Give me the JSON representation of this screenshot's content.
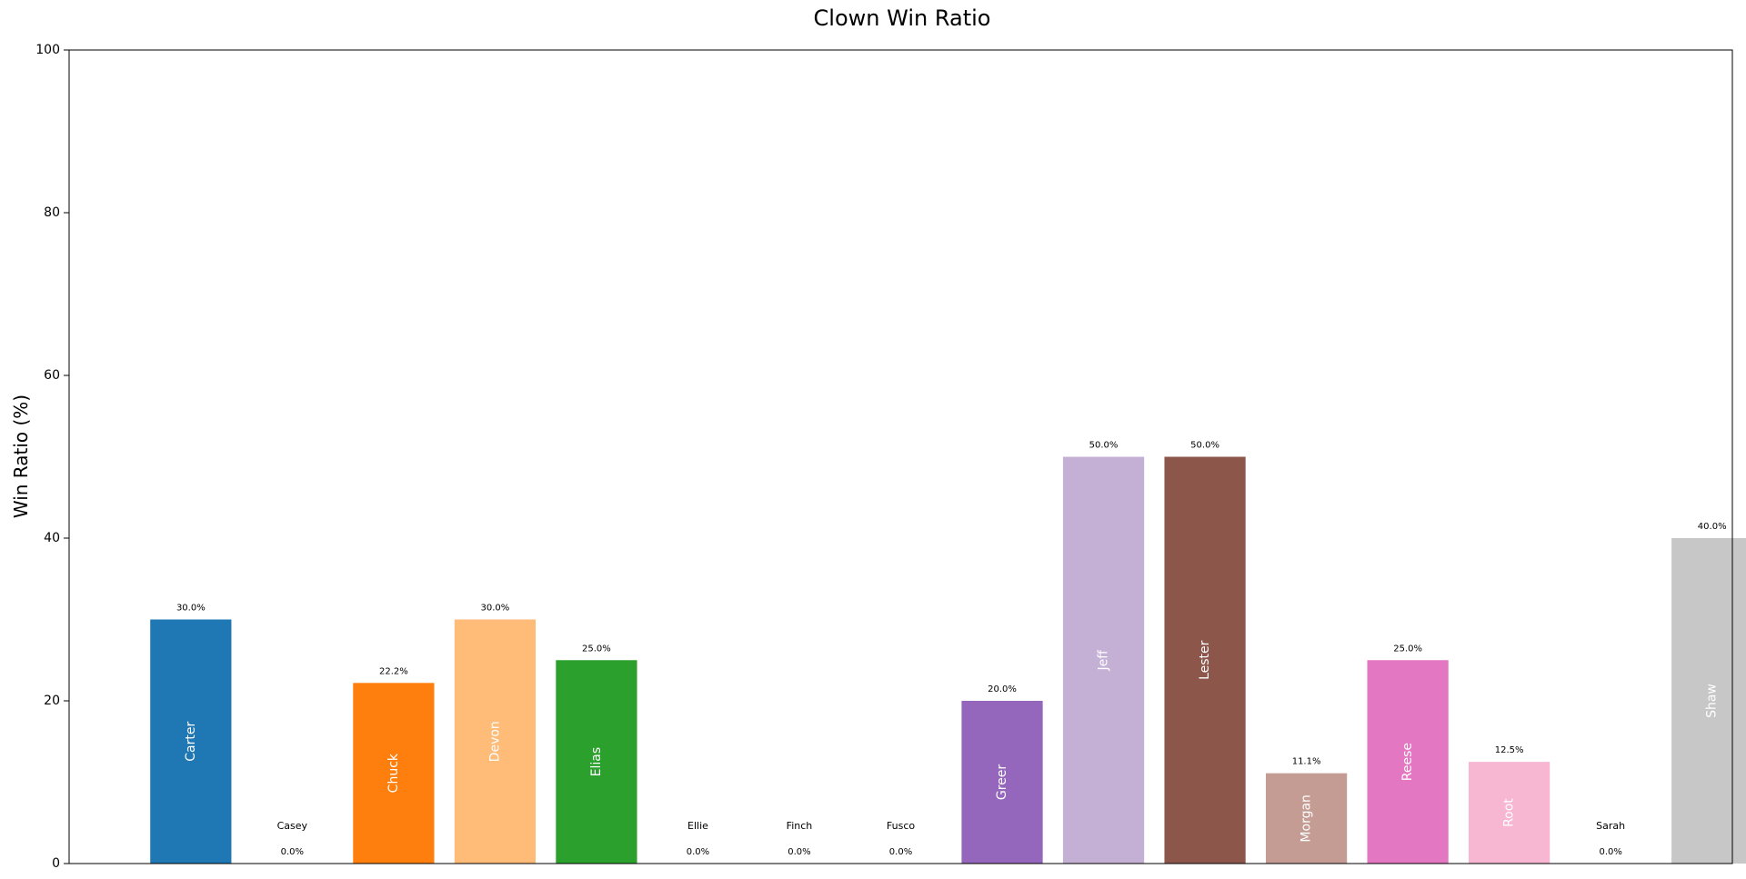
{
  "chart_data": {
    "type": "bar",
    "title": "Clown Win Ratio",
    "xlabel": "",
    "ylabel": "Win Ratio (%)",
    "ylim": [
      0,
      100
    ],
    "yticks": [
      0,
      20,
      40,
      60,
      80,
      100
    ],
    "grid": false,
    "categories": [
      "Carter",
      "Casey",
      "Chuck",
      "Devon",
      "Elias",
      "Ellie",
      "Finch",
      "Fusco",
      "Greer",
      "Jeff",
      "Lester",
      "Morgan",
      "Reese",
      "Root",
      "Sarah",
      "Shaw"
    ],
    "values": [
      30.0,
      0.0,
      22.2,
      30.0,
      25.0,
      0.0,
      0.0,
      0.0,
      20.0,
      50.0,
      50.0,
      11.1,
      25.0,
      12.5,
      0.0,
      40.0
    ],
    "value_labels": [
      "30.0%",
      "0.0%",
      "22.2%",
      "30.0%",
      "25.0%",
      "0.0%",
      "0.0%",
      "0.0%",
      "20.0%",
      "50.0%",
      "50.0%",
      "11.1%",
      "25.0%",
      "12.5%",
      "0.0%",
      "40.0%"
    ],
    "colors": [
      "#1f77b4",
      "#aec7e8",
      "#ff7f0e",
      "#ffbb78",
      "#2ca02c",
      "#98df8a",
      "#d62728",
      "#ff9896",
      "#9467bd",
      "#c5b0d5",
      "#8c564b",
      "#c49c94",
      "#e377c2",
      "#f7b6d2",
      "#7f7f7f",
      "#c7c7c7"
    ]
  }
}
